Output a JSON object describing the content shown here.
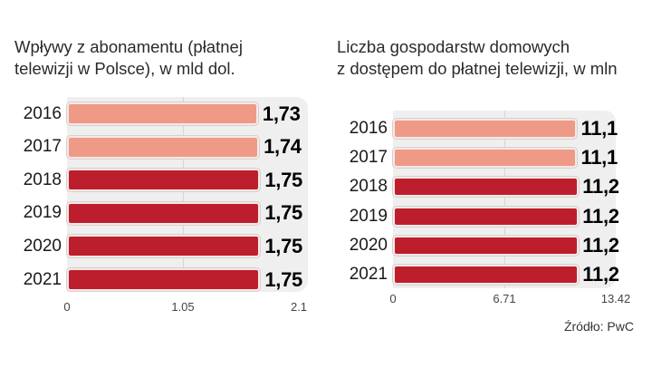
{
  "source": "Źródło: PwC",
  "colors": {
    "highlight": "#ee9a87",
    "default": "#bd1e2d",
    "plot_bg": "#efefef"
  },
  "chart_data": [
    {
      "type": "bar",
      "orientation": "horizontal",
      "title": "Wpływy z abonamentu (płatnej telewizji w Polsce), w mld dol.",
      "title_lines": [
        "Wpływy z abonamentu (płatnej",
        "telewizji w Polsce), w mld dol."
      ],
      "categories": [
        "2016",
        "2017",
        "2018",
        "2019",
        "2020",
        "2021"
      ],
      "values": [
        1.73,
        1.74,
        1.75,
        1.75,
        1.75,
        1.75
      ],
      "value_labels": [
        "1,73",
        "1,74",
        "1,75",
        "1,75",
        "1,75",
        "1,75"
      ],
      "bar_colors": [
        "#ee9a87",
        "#ee9a87",
        "#bd1e2d",
        "#bd1e2d",
        "#bd1e2d",
        "#bd1e2d"
      ],
      "xlim": [
        0,
        2.1
      ],
      "xticks": [
        "0",
        "1.05",
        "2.1"
      ],
      "xtick_values": [
        0,
        1.05,
        2.1
      ],
      "grid": true,
      "xlabel": "",
      "ylabel": ""
    },
    {
      "type": "bar",
      "orientation": "horizontal",
      "title": "Liczba gospodarstw domowych z dostępem do płatnej telewizji, w mln",
      "title_lines": [
        "Liczba gospodarstw domowych",
        "z dostępem do płatnej telewizji, w mln"
      ],
      "categories": [
        "2016",
        "2017",
        "2018",
        "2019",
        "2020",
        "2021"
      ],
      "values": [
        11.1,
        11.1,
        11.2,
        11.2,
        11.2,
        11.2
      ],
      "value_labels": [
        "11,1",
        "11,1",
        "11,2",
        "11,2",
        "11,2",
        "11,2"
      ],
      "bar_colors": [
        "#ee9a87",
        "#ee9a87",
        "#bd1e2d",
        "#bd1e2d",
        "#bd1e2d",
        "#bd1e2d"
      ],
      "xlim": [
        0,
        13.42
      ],
      "xticks": [
        "0",
        "6.71",
        "13.42"
      ],
      "xtick_values": [
        0,
        6.71,
        13.42
      ],
      "grid": true,
      "xlabel": "",
      "ylabel": ""
    }
  ]
}
